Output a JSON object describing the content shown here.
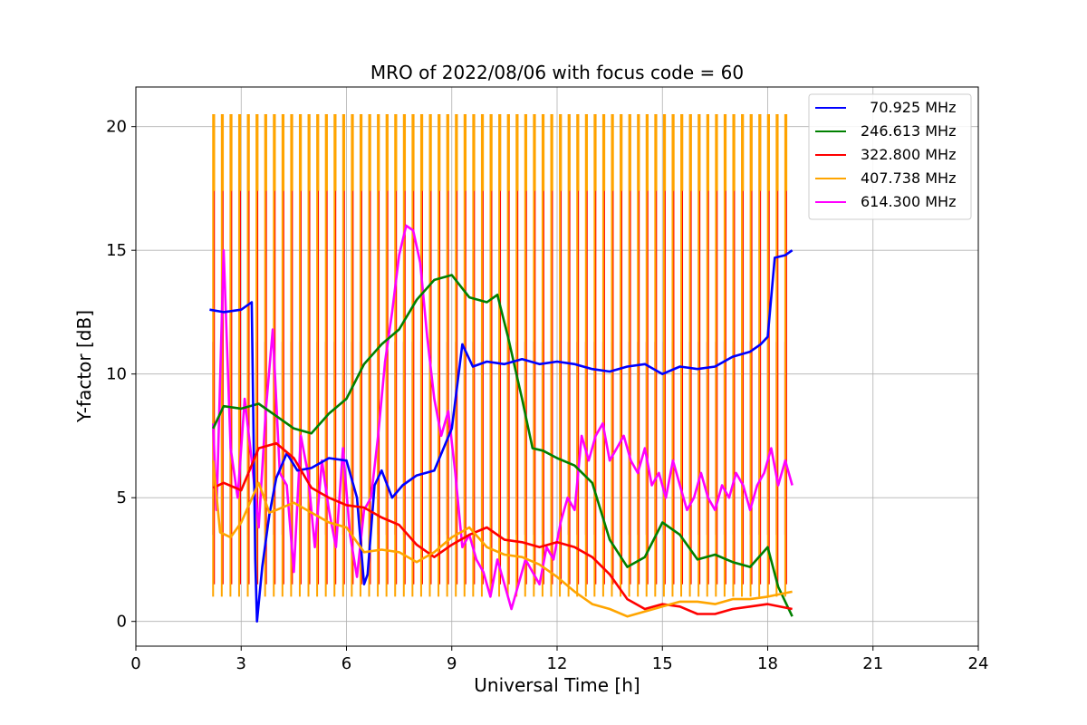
{
  "chart_data": {
    "type": "line",
    "title": "MRO of 2022/08/06 with focus code = 60",
    "xlabel": "Universal Time [h]",
    "ylabel": "Y-factor [dB]",
    "xlim": [
      0,
      24
    ],
    "ylim": [
      -1,
      21.6
    ],
    "xticks": [
      0,
      3,
      6,
      9,
      12,
      15,
      18,
      21,
      24
    ],
    "yticks": [
      0,
      5,
      10,
      15,
      20
    ],
    "xtick_labels": [
      "0",
      "3",
      "6",
      "9",
      "12",
      "15",
      "18",
      "21",
      "24"
    ],
    "ytick_labels": [
      "0",
      "5",
      "10",
      "15",
      "20"
    ],
    "grid": true,
    "legend_position": "top-right",
    "calibration_pulses": {
      "start": 2.2,
      "end": 18.5,
      "count": 67,
      "high_value": 20.5,
      "orange_mid_value": 17.4,
      "magenta_high_value": 11.3
    },
    "series": [
      {
        "name": "  70.925 MHz",
        "color": "#0000ff",
        "x": [
          2.1,
          2.5,
          3.0,
          3.3,
          3.4,
          3.45,
          3.6,
          3.8,
          4.0,
          4.3,
          4.6,
          5.0,
          5.5,
          6.0,
          6.3,
          6.5,
          6.6,
          6.8,
          7.0,
          7.3,
          7.6,
          8.0,
          8.5,
          9.0,
          9.3,
          9.6,
          10.0,
          10.5,
          11.0,
          11.5,
          12.0,
          12.5,
          13.0,
          13.5,
          14.0,
          14.5,
          15.0,
          15.5,
          16.0,
          16.5,
          17.0,
          17.5,
          17.8,
          18.0,
          18.2,
          18.5,
          18.7
        ],
        "y": [
          12.6,
          12.5,
          12.6,
          12.9,
          2.5,
          0.0,
          2.2,
          4.3,
          5.8,
          6.8,
          6.1,
          6.2,
          6.6,
          6.5,
          5.0,
          1.5,
          1.9,
          5.5,
          6.1,
          5.0,
          5.5,
          5.9,
          6.1,
          7.8,
          11.2,
          10.3,
          10.5,
          10.4,
          10.6,
          10.4,
          10.5,
          10.4,
          10.2,
          10.1,
          10.3,
          10.4,
          10.0,
          10.3,
          10.2,
          10.3,
          10.7,
          10.9,
          11.2,
          11.5,
          14.7,
          14.8,
          15.0
        ]
      },
      {
        "name": "246.613 MHz",
        "color": "#008000",
        "x": [
          2.2,
          2.5,
          3.0,
          3.5,
          4.0,
          4.5,
          5.0,
          5.5,
          6.0,
          6.5,
          7.0,
          7.5,
          8.0,
          8.5,
          9.0,
          9.5,
          10.0,
          10.3,
          10.6,
          11.0,
          11.3,
          11.6,
          12.0,
          12.5,
          13.0,
          13.5,
          14.0,
          14.5,
          15.0,
          15.5,
          16.0,
          16.5,
          17.0,
          17.5,
          18.0,
          18.3,
          18.7
        ],
        "y": [
          7.8,
          8.7,
          8.6,
          8.8,
          8.3,
          7.8,
          7.6,
          8.4,
          9.0,
          10.4,
          11.2,
          11.8,
          13.0,
          13.8,
          14.0,
          13.1,
          12.9,
          13.2,
          11.5,
          9.0,
          7.0,
          6.9,
          6.6,
          6.3,
          5.6,
          3.3,
          2.2,
          2.6,
          4.0,
          3.5,
          2.5,
          2.7,
          2.4,
          2.2,
          3.0,
          1.4,
          0.2
        ]
      },
      {
        "name": "322.800 MHz",
        "color": "#ff0000",
        "x": [
          2.2,
          2.5,
          3.0,
          3.5,
          4.0,
          4.5,
          5.0,
          5.5,
          6.0,
          6.5,
          7.0,
          7.5,
          8.0,
          8.5,
          9.0,
          9.5,
          10.0,
          10.5,
          11.0,
          11.5,
          12.0,
          12.5,
          13.0,
          13.5,
          14.0,
          14.5,
          15.0,
          15.5,
          16.0,
          16.5,
          17.0,
          17.5,
          18.0,
          18.7
        ],
        "y": [
          5.4,
          5.6,
          5.3,
          7.0,
          7.2,
          6.6,
          5.4,
          5.0,
          4.7,
          4.6,
          4.2,
          3.9,
          3.1,
          2.6,
          3.1,
          3.5,
          3.8,
          3.3,
          3.2,
          3.0,
          3.2,
          3.0,
          2.6,
          1.9,
          0.9,
          0.5,
          0.7,
          0.6,
          0.3,
          0.3,
          0.5,
          0.6,
          0.7,
          0.5
        ]
      },
      {
        "name": "407.738 MHz",
        "color": "#ffa500",
        "x": [
          2.2,
          2.4,
          2.7,
          3.0,
          3.5,
          3.8,
          4.0,
          4.5,
          5.0,
          5.5,
          6.0,
          6.5,
          7.0,
          7.5,
          8.0,
          8.5,
          9.0,
          9.5,
          10.0,
          10.5,
          11.0,
          11.5,
          12.0,
          12.5,
          13.0,
          13.5,
          14.0,
          14.5,
          15.0,
          15.5,
          16.0,
          16.5,
          17.0,
          17.5,
          18.0,
          18.7
        ],
        "y": [
          6.5,
          3.6,
          3.4,
          4.0,
          5.6,
          4.4,
          4.5,
          4.8,
          4.4,
          4.0,
          3.8,
          2.8,
          2.9,
          2.8,
          2.4,
          2.8,
          3.4,
          3.8,
          3.0,
          2.7,
          2.6,
          2.3,
          1.8,
          1.2,
          0.7,
          0.5,
          0.2,
          0.4,
          0.6,
          0.8,
          0.8,
          0.7,
          0.9,
          0.9,
          1.0,
          1.2
        ]
      },
      {
        "name": "614.300 MHz",
        "color": "#ff00ff",
        "x": [
          2.2,
          2.3,
          2.5,
          2.7,
          2.9,
          3.1,
          3.3,
          3.5,
          3.7,
          3.9,
          4.1,
          4.3,
          4.5,
          4.7,
          4.9,
          5.1,
          5.3,
          5.5,
          5.7,
          5.9,
          6.1,
          6.3,
          6.5,
          6.7,
          6.9,
          7.1,
          7.3,
          7.5,
          7.7,
          7.9,
          8.1,
          8.3,
          8.5,
          8.7,
          8.9,
          9.1,
          9.3,
          9.5,
          9.7,
          9.9,
          10.1,
          10.3,
          10.5,
          10.7,
          10.9,
          11.1,
          11.3,
          11.5,
          11.7,
          11.9,
          12.1,
          12.3,
          12.5,
          12.7,
          12.9,
          13.1,
          13.3,
          13.5,
          13.7,
          13.9,
          14.1,
          14.3,
          14.5,
          14.7,
          14.9,
          15.1,
          15.3,
          15.5,
          15.7,
          15.9,
          16.1,
          16.3,
          16.5,
          16.7,
          16.9,
          17.1,
          17.3,
          17.5,
          17.7,
          17.9,
          18.1,
          18.3,
          18.5,
          18.7
        ],
        "y": [
          8.0,
          4.5,
          15.0,
          7.0,
          5.0,
          9.0,
          6.5,
          3.8,
          8.5,
          11.8,
          6.0,
          5.5,
          2.0,
          7.5,
          6.0,
          3.0,
          6.5,
          4.5,
          3.0,
          7.0,
          3.5,
          1.8,
          4.5,
          5.0,
          7.5,
          10.5,
          12.5,
          14.8,
          16.0,
          15.8,
          14.5,
          11.5,
          9.0,
          7.5,
          8.5,
          6.0,
          3.0,
          3.5,
          2.5,
          2.0,
          1.0,
          2.5,
          1.5,
          0.5,
          1.5,
          2.5,
          2.0,
          1.5,
          3.0,
          2.5,
          4.0,
          5.0,
          4.5,
          7.5,
          6.5,
          7.5,
          8.0,
          6.5,
          7.0,
          7.5,
          6.5,
          6.0,
          7.0,
          5.5,
          6.0,
          5.0,
          6.5,
          5.5,
          4.5,
          5.0,
          6.0,
          5.0,
          4.5,
          5.5,
          5.0,
          6.0,
          5.5,
          4.5,
          5.5,
          6.0,
          7.0,
          5.5,
          6.5,
          5.5
        ]
      }
    ]
  }
}
